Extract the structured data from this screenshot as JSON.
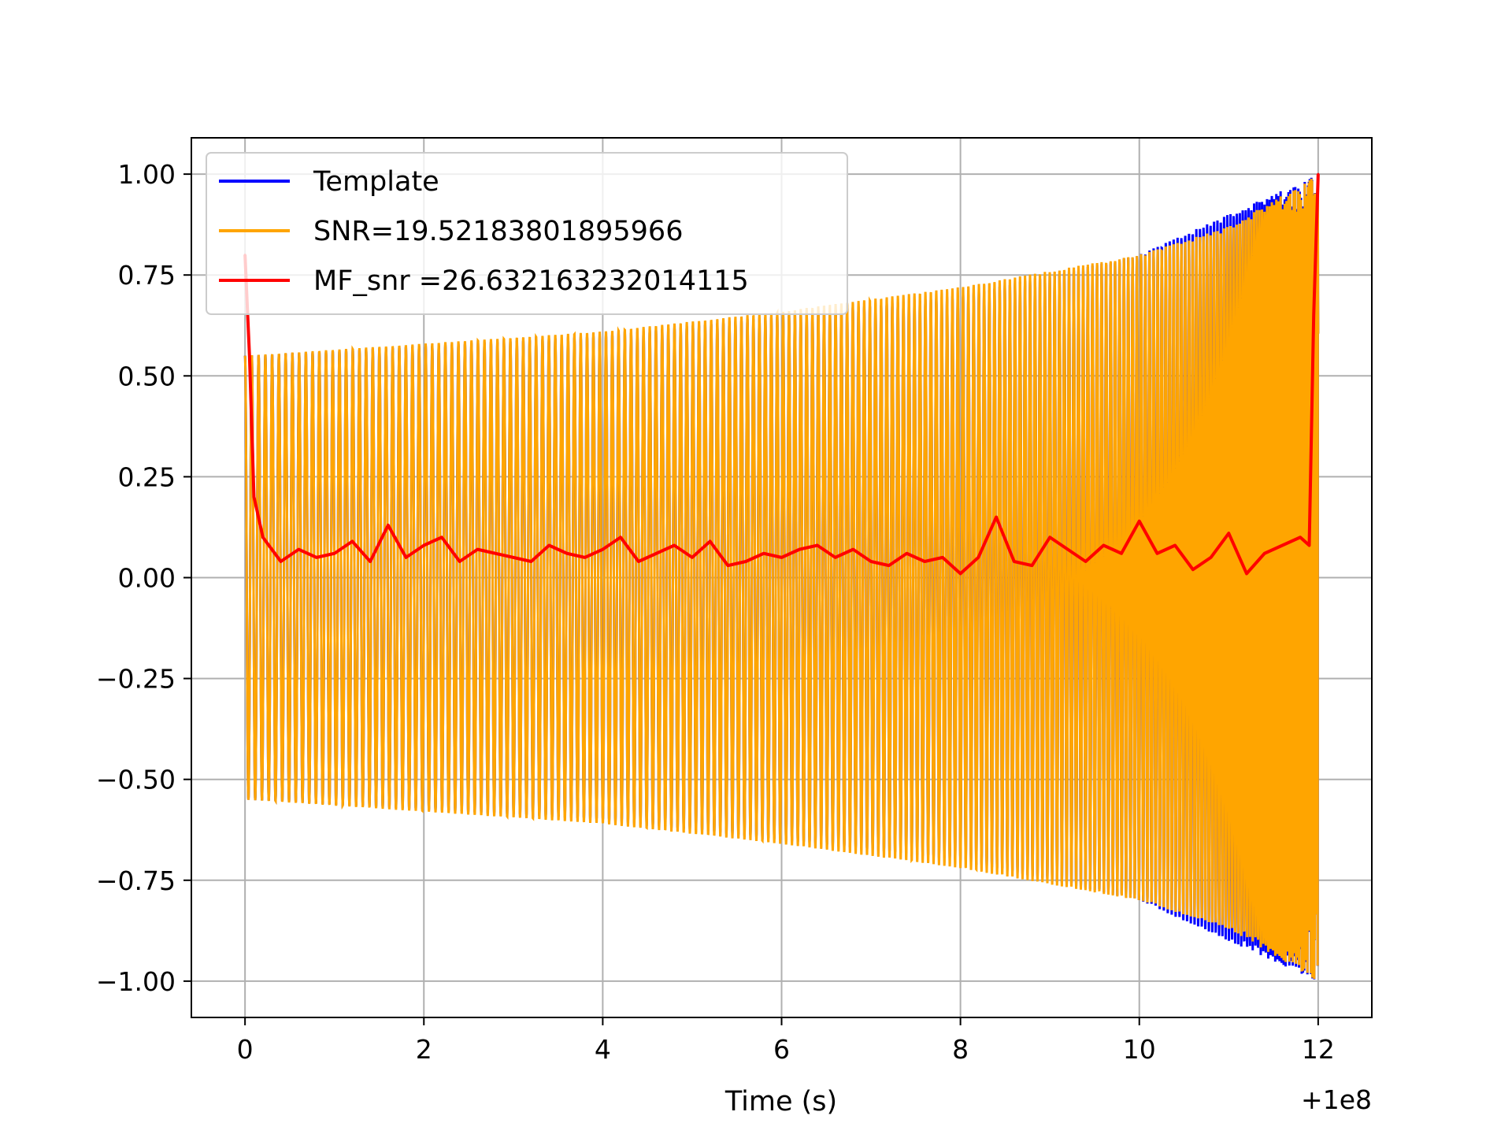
{
  "chart_data": {
    "type": "line",
    "title": "",
    "xlabel": "Time (s)",
    "ylabel": "",
    "x_offset_text": "+1e8",
    "xlim": [
      -0.6,
      12.6
    ],
    "ylim": [
      -1.09,
      1.09
    ],
    "x_ticks": [
      0,
      2,
      4,
      6,
      8,
      10,
      12
    ],
    "x_tick_labels": [
      "0",
      "2",
      "4",
      "6",
      "8",
      "10",
      "12"
    ],
    "y_ticks": [
      1.0,
      0.75,
      0.5,
      0.25,
      0.0,
      -0.25,
      -0.5,
      -0.75,
      -1.0
    ],
    "y_tick_labels": [
      "1.00",
      "0.75",
      "0.50",
      "0.25",
      "0.00",
      "−0.25",
      "−0.50",
      "−0.75",
      "−1.00"
    ],
    "grid": true,
    "legend_position": "top-left",
    "series": [
      {
        "name": "Template",
        "color": "#0000ff",
        "description": "chirp signal, hidden beneath SNR series",
        "x": [
          0,
          12
        ],
        "envelope": [
          [
            0,
            0.55
          ],
          [
            4,
            0.6
          ],
          [
            8,
            0.7
          ],
          [
            10,
            0.8
          ],
          [
            12,
            1.0
          ]
        ]
      },
      {
        "name": "SNR=19.52183801895966",
        "color": "#ffa500",
        "description": "chirp oscillation with growing amplitude and frequency",
        "x": [
          0,
          12
        ],
        "envelope": [
          [
            0,
            0.55
          ],
          [
            2,
            0.58
          ],
          [
            4,
            0.61
          ],
          [
            6,
            0.66
          ],
          [
            8,
            0.72
          ],
          [
            10,
            0.8
          ],
          [
            11,
            0.87
          ],
          [
            12,
            1.0
          ]
        ]
      },
      {
        "name": "MF_snr =26.632163232014115",
        "color": "#ff0000",
        "x": [
          0,
          0.05,
          0.1,
          0.2,
          0.4,
          0.6,
          0.8,
          1.0,
          1.2,
          1.4,
          1.6,
          1.8,
          2.0,
          2.2,
          2.4,
          2.6,
          2.8,
          3.0,
          3.2,
          3.4,
          3.6,
          3.8,
          4.0,
          4.2,
          4.4,
          4.6,
          4.8,
          5.0,
          5.2,
          5.4,
          5.6,
          5.8,
          6.0,
          6.2,
          6.4,
          6.6,
          6.8,
          7.0,
          7.2,
          7.4,
          7.6,
          7.8,
          8.0,
          8.2,
          8.4,
          8.6,
          8.8,
          9.0,
          9.2,
          9.4,
          9.6,
          9.8,
          10.0,
          10.2,
          10.4,
          10.6,
          10.8,
          11.0,
          11.2,
          11.4,
          11.6,
          11.8,
          11.9,
          11.95,
          12.0
        ],
        "values": [
          0.8,
          0.55,
          0.2,
          0.1,
          0.04,
          0.07,
          0.05,
          0.06,
          0.09,
          0.04,
          0.13,
          0.05,
          0.08,
          0.1,
          0.04,
          0.07,
          0.06,
          0.05,
          0.04,
          0.08,
          0.06,
          0.05,
          0.07,
          0.1,
          0.04,
          0.06,
          0.08,
          0.05,
          0.09,
          0.03,
          0.04,
          0.06,
          0.05,
          0.07,
          0.08,
          0.05,
          0.07,
          0.04,
          0.03,
          0.06,
          0.04,
          0.05,
          0.01,
          0.05,
          0.15,
          0.04,
          0.03,
          0.1,
          0.07,
          0.04,
          0.08,
          0.06,
          0.14,
          0.06,
          0.08,
          0.02,
          0.05,
          0.11,
          0.01,
          0.06,
          0.08,
          0.1,
          0.08,
          0.65,
          1.0
        ]
      }
    ]
  }
}
